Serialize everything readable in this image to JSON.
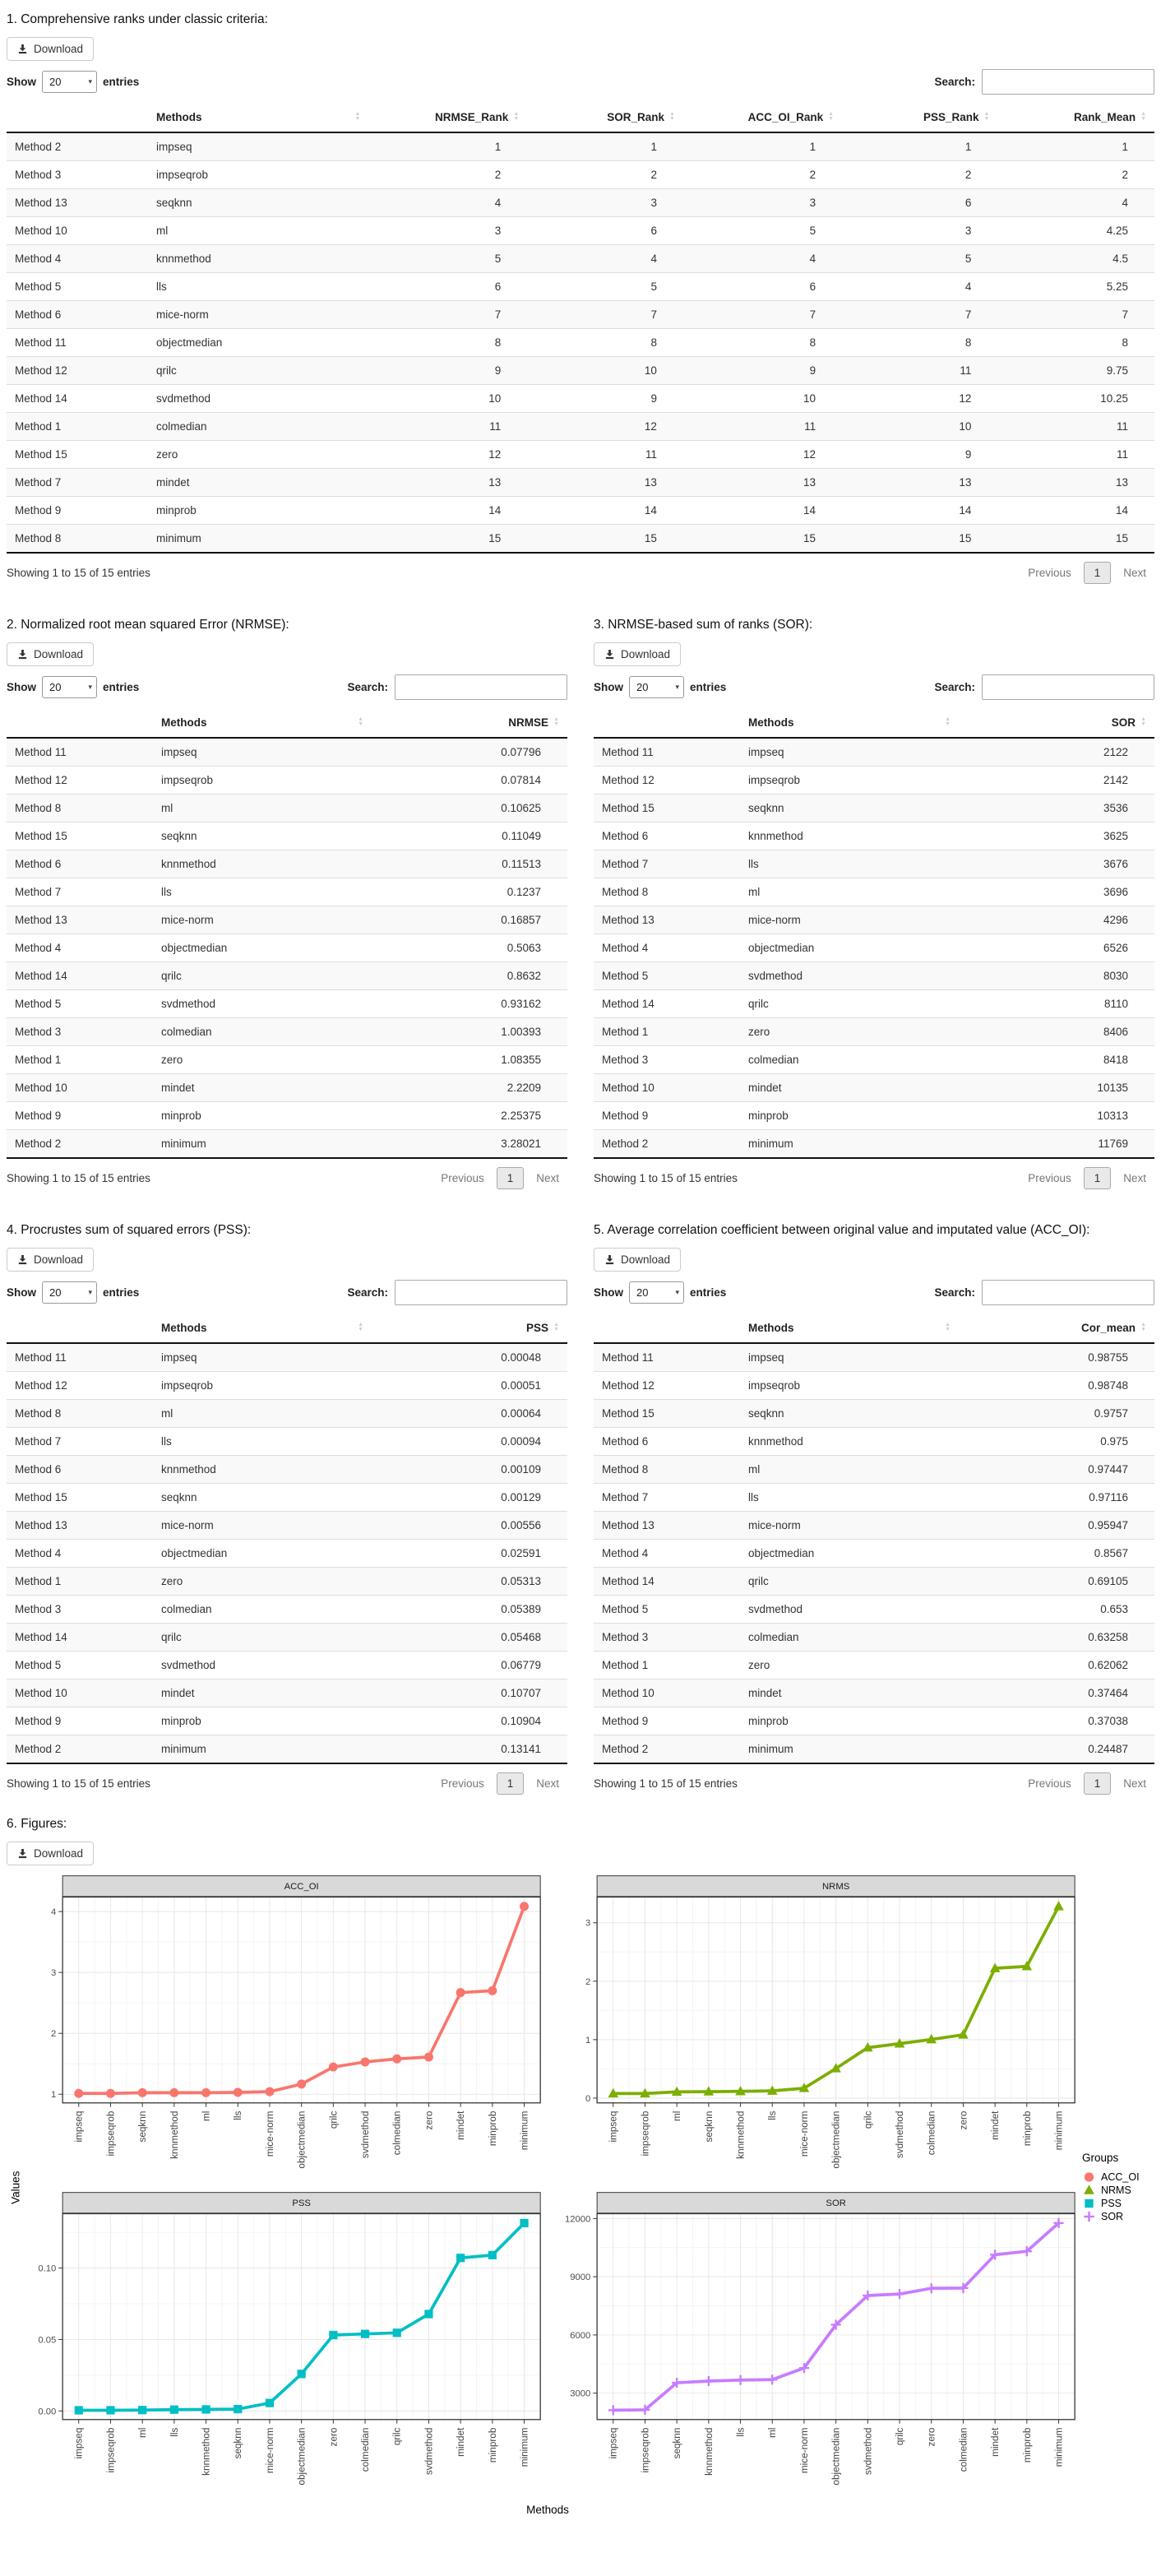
{
  "ui": {
    "download": "Download",
    "show": "Show",
    "page_length": "20",
    "entries": "entries",
    "search": "Search:",
    "showing": "Showing 1 to 15 of 15 entries",
    "previous": "Previous",
    "page": "1",
    "next": "Next"
  },
  "sections": {
    "table1": {
      "title": "1. Comprehensive ranks under classic criteria:",
      "columns": [
        "Methods",
        "NRMSE_Rank",
        "SOR_Rank",
        "ACC_OI_Rank",
        "PSS_Rank",
        "Rank_Mean"
      ],
      "rows": [
        [
          "Method 2",
          "impseq",
          "1",
          "1",
          "1",
          "1",
          "1"
        ],
        [
          "Method 3",
          "impseqrob",
          "2",
          "2",
          "2",
          "2",
          "2"
        ],
        [
          "Method 13",
          "seqknn",
          "4",
          "3",
          "3",
          "6",
          "4"
        ],
        [
          "Method 10",
          "ml",
          "3",
          "6",
          "5",
          "3",
          "4.25"
        ],
        [
          "Method 4",
          "knnmethod",
          "5",
          "4",
          "4",
          "5",
          "4.5"
        ],
        [
          "Method 5",
          "lls",
          "6",
          "5",
          "6",
          "4",
          "5.25"
        ],
        [
          "Method 6",
          "mice-norm",
          "7",
          "7",
          "7",
          "7",
          "7"
        ],
        [
          "Method 11",
          "objectmedian",
          "8",
          "8",
          "8",
          "8",
          "8"
        ],
        [
          "Method 12",
          "qrilc",
          "9",
          "10",
          "9",
          "11",
          "9.75"
        ],
        [
          "Method 14",
          "svdmethod",
          "10",
          "9",
          "10",
          "12",
          "10.25"
        ],
        [
          "Method 1",
          "colmedian",
          "11",
          "12",
          "11",
          "10",
          "11"
        ],
        [
          "Method 15",
          "zero",
          "12",
          "11",
          "12",
          "9",
          "11"
        ],
        [
          "Method 7",
          "mindet",
          "13",
          "13",
          "13",
          "13",
          "13"
        ],
        [
          "Method 9",
          "minprob",
          "14",
          "14",
          "14",
          "14",
          "14"
        ],
        [
          "Method 8",
          "minimum",
          "15",
          "15",
          "15",
          "15",
          "15"
        ]
      ]
    },
    "table2": {
      "title": "2. Normalized root mean squared Error (NRMSE):",
      "columns": [
        "Methods",
        "NRMSE"
      ],
      "rows": [
        [
          "Method 11",
          "impseq",
          "0.07796"
        ],
        [
          "Method 12",
          "impseqrob",
          "0.07814"
        ],
        [
          "Method 8",
          "ml",
          "0.10625"
        ],
        [
          "Method 15",
          "seqknn",
          "0.11049"
        ],
        [
          "Method 6",
          "knnmethod",
          "0.11513"
        ],
        [
          "Method 7",
          "lls",
          "0.1237"
        ],
        [
          "Method 13",
          "mice-norm",
          "0.16857"
        ],
        [
          "Method 4",
          "objectmedian",
          "0.5063"
        ],
        [
          "Method 14",
          "qrilc",
          "0.8632"
        ],
        [
          "Method 5",
          "svdmethod",
          "0.93162"
        ],
        [
          "Method 3",
          "colmedian",
          "1.00393"
        ],
        [
          "Method 1",
          "zero",
          "1.08355"
        ],
        [
          "Method 10",
          "mindet",
          "2.2209"
        ],
        [
          "Method 9",
          "minprob",
          "2.25375"
        ],
        [
          "Method 2",
          "minimum",
          "3.28021"
        ]
      ]
    },
    "table3": {
      "title": "3. NRMSE-based sum of ranks (SOR):",
      "columns": [
        "Methods",
        "SOR"
      ],
      "rows": [
        [
          "Method 11",
          "impseq",
          "2122"
        ],
        [
          "Method 12",
          "impseqrob",
          "2142"
        ],
        [
          "Method 15",
          "seqknn",
          "3536"
        ],
        [
          "Method 6",
          "knnmethod",
          "3625"
        ],
        [
          "Method 7",
          "lls",
          "3676"
        ],
        [
          "Method 8",
          "ml",
          "3696"
        ],
        [
          "Method 13",
          "mice-norm",
          "4296"
        ],
        [
          "Method 4",
          "objectmedian",
          "6526"
        ],
        [
          "Method 5",
          "svdmethod",
          "8030"
        ],
        [
          "Method 14",
          "qrilc",
          "8110"
        ],
        [
          "Method 1",
          "zero",
          "8406"
        ],
        [
          "Method 3",
          "colmedian",
          "8418"
        ],
        [
          "Method 10",
          "mindet",
          "10135"
        ],
        [
          "Method 9",
          "minprob",
          "10313"
        ],
        [
          "Method 2",
          "minimum",
          "11769"
        ]
      ]
    },
    "table4": {
      "title": "4. Procrustes sum of squared errors (PSS):",
      "columns": [
        "Methods",
        "PSS"
      ],
      "rows": [
        [
          "Method 11",
          "impseq",
          "0.00048"
        ],
        [
          "Method 12",
          "impseqrob",
          "0.00051"
        ],
        [
          "Method 8",
          "ml",
          "0.00064"
        ],
        [
          "Method 7",
          "lls",
          "0.00094"
        ],
        [
          "Method 6",
          "knnmethod",
          "0.00109"
        ],
        [
          "Method 15",
          "seqknn",
          "0.00129"
        ],
        [
          "Method 13",
          "mice-norm",
          "0.00556"
        ],
        [
          "Method 4",
          "objectmedian",
          "0.02591"
        ],
        [
          "Method 1",
          "zero",
          "0.05313"
        ],
        [
          "Method 3",
          "colmedian",
          "0.05389"
        ],
        [
          "Method 14",
          "qrilc",
          "0.05468"
        ],
        [
          "Method 5",
          "svdmethod",
          "0.06779"
        ],
        [
          "Method 10",
          "mindet",
          "0.10707"
        ],
        [
          "Method 9",
          "minprob",
          "0.10904"
        ],
        [
          "Method 2",
          "minimum",
          "0.13141"
        ]
      ]
    },
    "table5": {
      "title": "5. Average correlation coefficient between original value and imputated value (ACC_OI):",
      "columns": [
        "Methods",
        "Cor_mean"
      ],
      "rows": [
        [
          "Method 11",
          "impseq",
          "0.98755"
        ],
        [
          "Method 12",
          "impseqrob",
          "0.98748"
        ],
        [
          "Method 15",
          "seqknn",
          "0.9757"
        ],
        [
          "Method 6",
          "knnmethod",
          "0.975"
        ],
        [
          "Method 8",
          "ml",
          "0.97447"
        ],
        [
          "Method 7",
          "lls",
          "0.97116"
        ],
        [
          "Method 13",
          "mice-norm",
          "0.95947"
        ],
        [
          "Method 4",
          "objectmedian",
          "0.8567"
        ],
        [
          "Method 14",
          "qrilc",
          "0.69105"
        ],
        [
          "Method 5",
          "svdmethod",
          "0.653"
        ],
        [
          "Method 3",
          "colmedian",
          "0.63258"
        ],
        [
          "Method 1",
          "zero",
          "0.62062"
        ],
        [
          "Method 10",
          "mindet",
          "0.37464"
        ],
        [
          "Method 9",
          "minprob",
          "0.37038"
        ],
        [
          "Method 2",
          "minimum",
          "0.24487"
        ]
      ]
    },
    "figures": {
      "title": "6. Figures:"
    }
  },
  "figure": {
    "ylabel": "Values",
    "xlabel": "Methods",
    "legend_title": "Groups",
    "legend": [
      {
        "label": "ACC_OI",
        "color": "#F8766D",
        "marker": "circle"
      },
      {
        "label": "NRMS",
        "color": "#7CAE00",
        "marker": "triangle"
      },
      {
        "label": "PSS",
        "color": "#00BFC4",
        "marker": "square"
      },
      {
        "label": "SOR",
        "color": "#C77CFF",
        "marker": "plus"
      }
    ]
  },
  "chart_data": [
    {
      "type": "line",
      "title": "ACC_OI",
      "color": "#F8766D",
      "marker": "circle",
      "categories": [
        "impseq",
        "impseqrob",
        "seqknn",
        "knnmethod",
        "ml",
        "lls",
        "mice-norm",
        "objectmedian",
        "qrilc",
        "svdmethod",
        "colmedian",
        "zero",
        "mindet",
        "minprob",
        "minimum"
      ],
      "values": [
        1.013,
        1.013,
        1.025,
        1.026,
        1.026,
        1.03,
        1.042,
        1.167,
        1.447,
        1.531,
        1.581,
        1.611,
        2.669,
        2.7,
        4.084
      ],
      "yticks": [
        1,
        2,
        3,
        4
      ],
      "ytick_labels": [
        "1",
        "2",
        "3",
        "4"
      ],
      "ylim": [
        0.858,
        4.238
      ],
      "xlabel": "Methods",
      "ylabel": "Values",
      "grid": true
    },
    {
      "type": "line",
      "title": "NRMS",
      "color": "#7CAE00",
      "marker": "triangle",
      "categories": [
        "impseq",
        "impseqrob",
        "ml",
        "seqknn",
        "knnmethod",
        "lls",
        "mice-norm",
        "objectmedian",
        "qrilc",
        "svdmethod",
        "colmedian",
        "zero",
        "mindet",
        "minprob",
        "minimum"
      ],
      "values": [
        0.07796,
        0.07814,
        0.10625,
        0.11049,
        0.11513,
        0.1237,
        0.16857,
        0.5063,
        0.8632,
        0.93162,
        1.00393,
        1.08355,
        2.2209,
        2.25375,
        3.28021
      ],
      "yticks": [
        0,
        1,
        2,
        3
      ],
      "ytick_labels": [
        "0",
        "1",
        "2",
        "3"
      ],
      "ylim": [
        -0.082,
        3.44
      ],
      "xlabel": "Methods",
      "ylabel": "Values",
      "grid": true
    },
    {
      "type": "line",
      "title": "PSS",
      "color": "#00BFC4",
      "marker": "square",
      "categories": [
        "impseq",
        "impseqrob",
        "ml",
        "lls",
        "knnmethod",
        "seqknn",
        "mice-norm",
        "objectmedian",
        "zero",
        "colmedian",
        "qrilc",
        "svdmethod",
        "mindet",
        "minprob",
        "minimum"
      ],
      "values": [
        0.00048,
        0.00051,
        0.00064,
        0.00094,
        0.00109,
        0.00129,
        0.00556,
        0.02591,
        0.05313,
        0.05389,
        0.05468,
        0.06779,
        0.10707,
        0.10904,
        0.13141
      ],
      "yticks": [
        0,
        0.05,
        0.1
      ],
      "ytick_labels": [
        "0.00",
        "0.05",
        "0.10"
      ],
      "ylim": [
        -0.006,
        0.138
      ],
      "xlabel": "Methods",
      "ylabel": "Values",
      "grid": true
    },
    {
      "type": "line",
      "title": "SOR",
      "color": "#C77CFF",
      "marker": "plus",
      "categories": [
        "impseq",
        "impseqrob",
        "seqknn",
        "knnmethod",
        "lls",
        "ml",
        "mice-norm",
        "objectmedian",
        "svdmethod",
        "qrilc",
        "zero",
        "colmedian",
        "mindet",
        "minprob",
        "minimum"
      ],
      "values": [
        2122,
        2142,
        3536,
        3625,
        3676,
        3696,
        4296,
        6526,
        8030,
        8110,
        8406,
        8418,
        10135,
        10313,
        11769
      ],
      "yticks": [
        3000,
        6000,
        9000,
        12000
      ],
      "ytick_labels": [
        "3000",
        "6000",
        "9000",
        "12000"
      ],
      "ylim": [
        1640,
        12250
      ],
      "xlabel": "Methods",
      "ylabel": "Values",
      "grid": true
    }
  ]
}
